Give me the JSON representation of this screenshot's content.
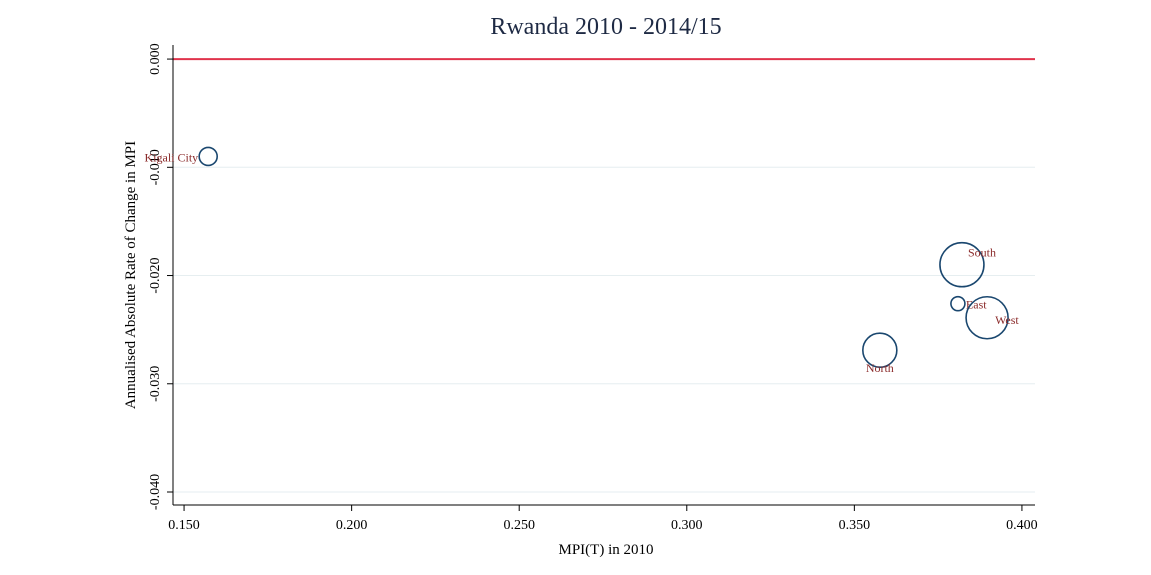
{
  "chart_data": {
    "type": "scatter",
    "title": "Rwanda 2010 - 2014/15",
    "x_label": "MPI(T) in 2010",
    "y_label": "Annualised Absolute Rate of Change in MPI",
    "names": [
      "Kigali City",
      "South",
      "East",
      "West",
      "North"
    ],
    "x": [
      0.1572,
      0.3821,
      0.3809,
      0.3896,
      0.3576
    ],
    "y": [
      -0.009,
      -0.019,
      -0.0226,
      -0.0239,
      -0.0269
    ],
    "sizes": [
      81,
      484,
      49,
      441,
      289
    ],
    "color": "#1a476f",
    "label_color": "#8b2b2b",
    "xlim": [
      0.1467,
      0.4039
    ],
    "ylim": [
      -0.0412,
      0.0013
    ],
    "xticks": [
      {
        "value": 0.15,
        "label": "0.150"
      },
      {
        "value": 0.2,
        "label": "0.200"
      },
      {
        "value": 0.25,
        "label": "0.250"
      },
      {
        "value": 0.3,
        "label": "0.300"
      },
      {
        "value": 0.35,
        "label": "0.350"
      },
      {
        "value": 0.4,
        "label": "0.400"
      }
    ],
    "yticks": [
      {
        "value": 0,
        "label": "0.000"
      },
      {
        "value": -0.01,
        "label": "-0.010"
      },
      {
        "value": -0.02,
        "label": "-0.020"
      },
      {
        "value": -0.03,
        "label": "-0.030"
      },
      {
        "value": -0.04,
        "label": "-0.040"
      }
    ],
    "grid": true,
    "reference_line": {
      "y": 0,
      "color": "#e0334b"
    }
  }
}
